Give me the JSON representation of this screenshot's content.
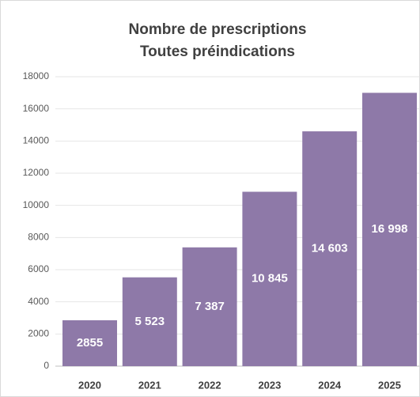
{
  "chart_data": {
    "type": "bar",
    "title": [
      "Nombre de prescriptions",
      "Toutes préindications"
    ],
    "categories": [
      "2020",
      "2021",
      "2022",
      "2023",
      "2024",
      "2025"
    ],
    "values": [
      2855,
      5523,
      7387,
      10845,
      14603,
      16998
    ],
    "value_labels": [
      "2855",
      "5 523",
      "7 387",
      "10 845",
      "14 603",
      "16 998"
    ],
    "color": "#8e79a8",
    "ylim": [
      0,
      18000
    ],
    "yticks": [
      0,
      2000,
      4000,
      6000,
      8000,
      10000,
      12000,
      14000,
      16000,
      18000
    ],
    "grid": true
  }
}
